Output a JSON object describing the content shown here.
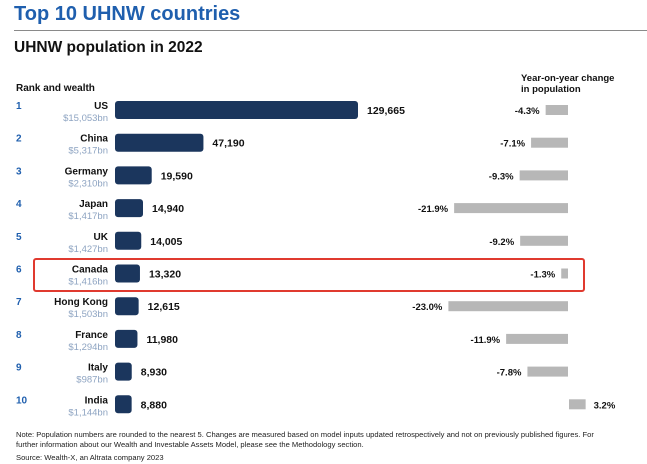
{
  "page": {
    "title": "Top 10 UHNW countries",
    "note": "Note: Population numbers are rounded to the nearest 5. Changes are measured based on model inputs updated retrospectively and not on previously published figures. For further information about our Wealth and Investable Assets Model, please see the Methodology section.",
    "source": "Source: Wealth-X, an Altrata company 2023"
  },
  "colors": {
    "title": "#1f5fae",
    "bar": "#1b365d",
    "change_bar": "#b7b7b7",
    "highlight": "#e03a2f",
    "rank": "#1f5fae",
    "wealth": "#8ea4c2"
  },
  "chart_data": {
    "type": "bar",
    "title": "UHNW population in 2022",
    "left_label": "Rank and wealth",
    "right_label_line1": "Year-on-year change",
    "right_label_line2": "in population",
    "highlighted": "Canada",
    "rows": [
      {
        "rank": "1",
        "country": "US",
        "wealth": "$15,053bn",
        "population": 129665,
        "population_label": "129,665",
        "change": -4.3,
        "change_label": "-4.3%"
      },
      {
        "rank": "2",
        "country": "China",
        "wealth": "$5,317bn",
        "population": 47190,
        "population_label": "47,190",
        "change": -7.1,
        "change_label": "-7.1%"
      },
      {
        "rank": "3",
        "country": "Germany",
        "wealth": "$2,310bn",
        "population": 19590,
        "population_label": "19,590",
        "change": -9.3,
        "change_label": "-9.3%"
      },
      {
        "rank": "4",
        "country": "Japan",
        "wealth": "$1,417bn",
        "population": 14940,
        "population_label": "14,940",
        "change": -21.9,
        "change_label": "-21.9%"
      },
      {
        "rank": "5",
        "country": "UK",
        "wealth": "$1,427bn",
        "population": 14005,
        "population_label": "14,005",
        "change": -9.2,
        "change_label": "-9.2%"
      },
      {
        "rank": "6",
        "country": "Canada",
        "wealth": "$1,416bn",
        "population": 13320,
        "population_label": "13,320",
        "change": -1.3,
        "change_label": "-1.3%"
      },
      {
        "rank": "7",
        "country": "Hong Kong",
        "wealth": "$1,503bn",
        "population": 12615,
        "population_label": "12,615",
        "change": -23.0,
        "change_label": "-23.0%"
      },
      {
        "rank": "8",
        "country": "France",
        "wealth": "$1,294bn",
        "population": 11980,
        "population_label": "11,980",
        "change": -11.9,
        "change_label": "-11.9%"
      },
      {
        "rank": "9",
        "country": "Italy",
        "wealth": "$987bn",
        "population": 8930,
        "population_label": "8,930",
        "change": -7.8,
        "change_label": "-7.8%"
      },
      {
        "rank": "10",
        "country": "India",
        "wealth": "$1,144bn",
        "population": 8880,
        "population_label": "8,880",
        "change": 3.2,
        "change_label": "3.2%"
      }
    ]
  }
}
